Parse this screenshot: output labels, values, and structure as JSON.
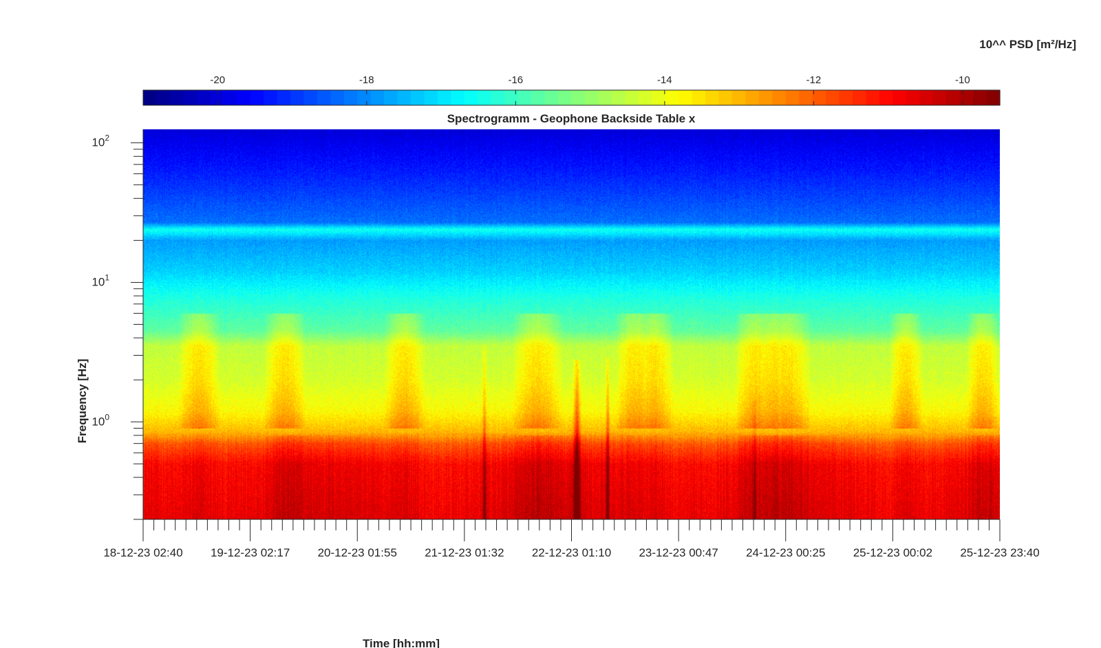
{
  "chart_data": {
    "type": "heatmap",
    "title": "Spectrogramm - Geophone Backside Table x",
    "xlabel": "Time [hh:mm]",
    "ylabel": "Frequency [Hz]",
    "y_scale": "log",
    "ylim": [
      0.2,
      125
    ],
    "x_tick_labels": [
      "18-12-23 02:40",
      "19-12-23 02:17",
      "20-12-23 01:55",
      "21-12-23 01:32",
      "22-12-23 01:10",
      "23-12-23 00:47",
      "24-12-23 00:25",
      "25-12-23 00:02",
      "25-12-23 23:40"
    ],
    "x_minor_ticks_per_major": 10,
    "y_major_ticks": [
      {
        "value": 1,
        "base": "10",
        "exp": "0"
      },
      {
        "value": 10,
        "base": "10",
        "exp": "1"
      },
      {
        "value": 100,
        "base": "10",
        "exp": "2"
      }
    ],
    "colorbar": {
      "label": "10^^ PSD [m²/Hz]",
      "range": [
        -21,
        -9.5
      ],
      "ticks": [
        -20,
        -18,
        -16,
        -14,
        -12,
        -10
      ],
      "colormap": "jet"
    },
    "psd_profile": [
      {
        "freq": 0.2,
        "value": -10.6
      },
      {
        "freq": 0.5,
        "value": -10.9
      },
      {
        "freq": 0.7,
        "value": -11.8
      },
      {
        "freq": 0.85,
        "value": -13.0
      },
      {
        "freq": 1.2,
        "value": -13.8
      },
      {
        "freq": 2.0,
        "value": -14.3
      },
      {
        "freq": 3.5,
        "value": -14.5
      },
      {
        "freq": 4.5,
        "value": -15.6
      },
      {
        "freq": 8,
        "value": -16.4
      },
      {
        "freq": 12,
        "value": -17.2
      },
      {
        "freq": 20,
        "value": -17.8
      },
      {
        "freq": 24,
        "value": -16.5
      },
      {
        "freq": 27,
        "value": -18.3
      },
      {
        "freq": 45,
        "value": -18.9
      },
      {
        "freq": 70,
        "value": -19.4
      },
      {
        "freq": 125,
        "value": -20.0
      }
    ],
    "activity_bands": [
      {
        "start": 0.04,
        "end": 0.09
      },
      {
        "start": 0.14,
        "end": 0.19
      },
      {
        "start": 0.28,
        "end": 0.33
      },
      {
        "start": 0.43,
        "end": 0.49
      },
      {
        "start": 0.55,
        "end": 0.6
      },
      {
        "start": 0.57,
        "end": 0.62
      },
      {
        "start": 0.69,
        "end": 0.74
      },
      {
        "start": 0.71,
        "end": 0.76
      },
      {
        "start": 0.72,
        "end": 0.78
      },
      {
        "start": 0.87,
        "end": 0.91
      },
      {
        "start": 0.96,
        "end": 1.0
      }
    ],
    "events": [
      {
        "t": 0.398,
        "fmax": 3.6,
        "strength": 1.2
      },
      {
        "t": 0.506,
        "fmax": 2.8,
        "strength": 2.2
      },
      {
        "t": 0.542,
        "fmax": 2.9,
        "strength": 1.4
      },
      {
        "t": 0.713,
        "fmax": 1.4,
        "strength": 0.8
      }
    ]
  }
}
